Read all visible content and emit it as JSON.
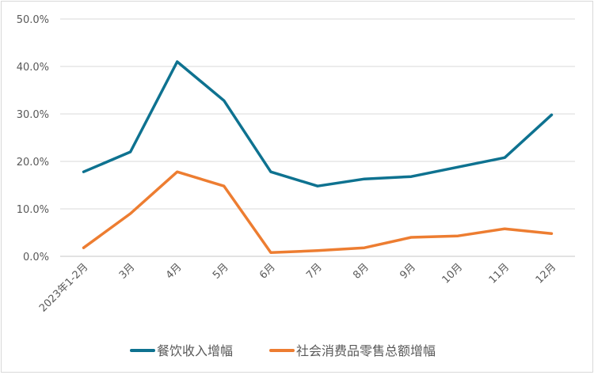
{
  "chart_data": {
    "type": "line",
    "title": "",
    "xlabel": "",
    "ylabel": "",
    "ylim": [
      0,
      50
    ],
    "yticks": [
      "0.0%",
      "10.0%",
      "20.0%",
      "30.0%",
      "40.0%",
      "50.0%"
    ],
    "grid": true,
    "legend_position": "bottom",
    "categories": [
      "2023年1-2月",
      "3月",
      "4月",
      "5月",
      "6月",
      "7月",
      "8月",
      "9月",
      "10月",
      "11月",
      "12月"
    ],
    "series": [
      {
        "name": "餐饮收入增幅",
        "color": "#0e7290",
        "values": [
          17.8,
          22.0,
          41.0,
          32.8,
          17.8,
          14.8,
          16.3,
          16.8,
          18.8,
          20.8,
          29.8
        ]
      },
      {
        "name": "社会消费品零售总额增幅",
        "color": "#ed7d31",
        "values": [
          1.8,
          9.0,
          17.8,
          14.8,
          0.8,
          1.2,
          1.8,
          4.0,
          4.3,
          5.8,
          4.8
        ]
      }
    ]
  }
}
